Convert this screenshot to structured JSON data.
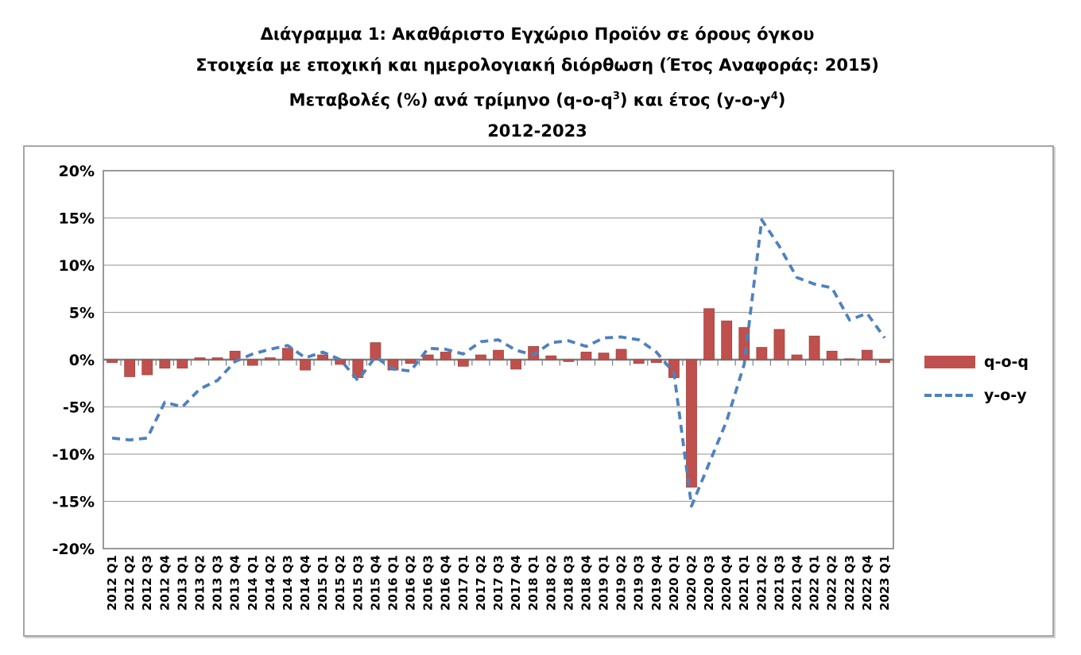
{
  "title": {
    "line1": "Διάγραμμα 1: Ακαθάριστο Εγχώριο Προϊόν σε όρους όγκου",
    "line2": "Στοιχεία με εποχική και ημερολογιακή διόρθωση (Έτος Αναφοράς: 2015)",
    "line3_prefix": "Μεταβολές (%) ανά τρίμηνο (q-o-q",
    "line3_sup1": "3",
    "line3_mid": ") και έτος (y-o-y",
    "line3_sup2": "4",
    "line3_suffix": ")",
    "line4": "2012-2023"
  },
  "legend": [
    {
      "label": "q-o-q",
      "type": "bar",
      "color": "#c0504d"
    },
    {
      "label": "y-o-y",
      "type": "dashed-line",
      "color": "#4f81bd"
    }
  ],
  "axis": {
    "y_tick_labels": [
      "20%",
      "15%",
      "10%",
      "5%",
      "0%",
      "-5%",
      "-10%",
      "-15%",
      "-20%"
    ],
    "y_min": -20,
    "y_max": 20,
    "y_step": 5
  },
  "colors": {
    "bar": "#c0504d",
    "bar_edge": "#9c4542",
    "line": "#4f81bd",
    "gridline": "#a6a6a6",
    "axis": "#808080",
    "text": "#000000",
    "frame": "#808080"
  },
  "chart_data": {
    "type": "bar",
    "subtype": "bar+dashed-line combo",
    "title": "Διάγραμμα 1: Ακαθάριστο Εγχώριο Προϊόν σε όρους όγκου — Μεταβολές (%) ανά τρίμηνο (q-o-q) και έτος (y-o-y), 2012-2023",
    "xlabel": "",
    "ylabel": "",
    "ylim": [
      -20,
      20
    ],
    "y_step": 5,
    "grid": true,
    "legend_position": "right",
    "categories": [
      "2012 Q1",
      "2012 Q2",
      "2012 Q3",
      "2012 Q4",
      "2013 Q1",
      "2013 Q2",
      "2013 Q3",
      "2013 Q4",
      "2014 Q1",
      "2014 Q2",
      "2014 Q3",
      "2014 Q4",
      "2015 Q1",
      "2015 Q2",
      "2015 Q3",
      "2015 Q4",
      "2016 Q1",
      "2016 Q2",
      "2016 Q3",
      "2016 Q4",
      "2017 Q1",
      "2017 Q2",
      "2017 Q3",
      "2017 Q4",
      "2018 Q1",
      "2018 Q2",
      "2018 Q3",
      "2018 Q4",
      "2019 Q1",
      "2019 Q2",
      "2019 Q3",
      "2019 Q4",
      "2020 Q1",
      "2020 Q2",
      "2020 Q3",
      "2020 Q4",
      "2021 Q1",
      "2021 Q2",
      "2021 Q3",
      "2021 Q4",
      "2022 Q1",
      "2022 Q2",
      "2022 Q3",
      "2022 Q4",
      "2023 Q1"
    ],
    "series": [
      {
        "name": "q-o-q",
        "type": "bar",
        "color": "#c0504d",
        "values": [
          -0.3,
          -1.8,
          -1.6,
          -0.9,
          -0.9,
          0.2,
          0.2,
          0.9,
          -0.6,
          0.2,
          1.2,
          -1.1,
          0.5,
          -0.5,
          -1.9,
          1.8,
          -1.1,
          -0.4,
          0.5,
          0.8,
          -0.7,
          0.5,
          1.0,
          -1.0,
          1.4,
          0.4,
          -0.2,
          0.8,
          0.7,
          1.1,
          -0.4,
          -0.3,
          -1.9,
          -13.5,
          5.4,
          4.1,
          3.4,
          1.3,
          3.2,
          0.5,
          2.5,
          0.9,
          0.1,
          1.0,
          -0.3
        ]
      },
      {
        "name": "y-o-y",
        "type": "line",
        "dashed": true,
        "color": "#4f81bd",
        "values": [
          -8.3,
          -8.5,
          -8.3,
          -4.5,
          -5.0,
          -3.1,
          -2.2,
          -0.2,
          0.6,
          1.1,
          1.5,
          0.2,
          0.8,
          0.0,
          -2.2,
          0.3,
          -1.0,
          -1.2,
          1.2,
          1.1,
          0.6,
          1.9,
          2.1,
          1.0,
          0.5,
          1.8,
          2.0,
          1.4,
          2.3,
          2.4,
          2.1,
          0.8,
          -1.4,
          -15.5,
          -11.0,
          -6.5,
          -0.5,
          14.8,
          12.0,
          8.7,
          8.0,
          7.6,
          4.2,
          4.9,
          2.3
        ]
      }
    ]
  }
}
